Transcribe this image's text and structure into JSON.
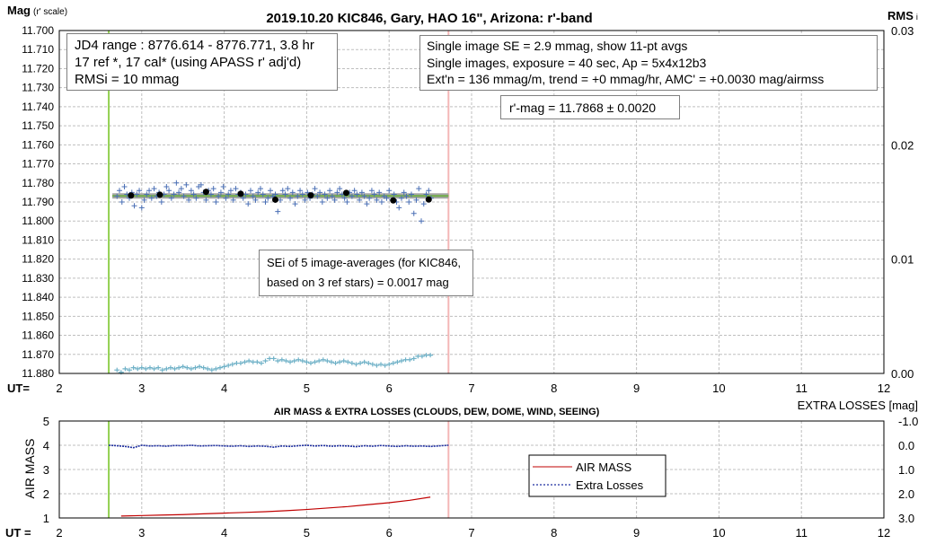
{
  "chart_data": [
    {
      "type": "scatter",
      "title": "2019.10.20 KIC846, Gary, HAO 16\", Arizona: r'-band",
      "ylabel_main": "Mag",
      "ylabel_sub": "(r' scale)",
      "y2label_main": "RMS",
      "y2label_sub": "i",
      "xlabel": "UT=",
      "xlim": [
        2,
        12
      ],
      "ylim": [
        11.7,
        11.88
      ],
      "y_inverted": true,
      "y2lim": [
        0.0,
        0.03
      ],
      "x_ticks": [
        "2",
        "3",
        "4",
        "5",
        "6",
        "7",
        "8",
        "9",
        "10",
        "11",
        "12"
      ],
      "y_ticks": [
        "11.700",
        "11.710",
        "11.720",
        "11.730",
        "11.740",
        "11.750",
        "11.760",
        "11.770",
        "11.780",
        "11.790",
        "11.800",
        "11.810",
        "11.820",
        "11.830",
        "11.840",
        "11.850",
        "11.860",
        "11.870",
        "11.880"
      ],
      "y2_ticks": [
        "0.03",
        "0.02",
        "0.01",
        "0.00"
      ],
      "grid": true,
      "vertical_lines": [
        {
          "x": 2.6,
          "color": "#92d050"
        },
        {
          "x": 6.72,
          "color": "#f4b6b6"
        }
      ],
      "fit_mag": 11.7868,
      "fit_x_range": [
        2.6,
        6.72
      ],
      "series": [
        {
          "kind": "single-image",
          "color": "#4a6fb5",
          "x": [
            2.7,
            2.73,
            2.76,
            2.79,
            2.82,
            2.85,
            2.88,
            2.91,
            2.94,
            2.97,
            3.0,
            3.03,
            3.06,
            3.09,
            3.12,
            3.15,
            3.18,
            3.21,
            3.24,
            3.27,
            3.3,
            3.33,
            3.36,
            3.39,
            3.42,
            3.45,
            3.48,
            3.51,
            3.54,
            3.57,
            3.6,
            3.63,
            3.66,
            3.69,
            3.72,
            3.75,
            3.78,
            3.81,
            3.84,
            3.87,
            3.9,
            3.93,
            3.96,
            3.99,
            4.02,
            4.05,
            4.08,
            4.11,
            4.14,
            4.17,
            4.2,
            4.23,
            4.26,
            4.29,
            4.32,
            4.35,
            4.38,
            4.41,
            4.44,
            4.47,
            4.5,
            4.53,
            4.56,
            4.59,
            4.62,
            4.65,
            4.68,
            4.71,
            4.74,
            4.77,
            4.8,
            4.83,
            4.86,
            4.89,
            4.92,
            4.95,
            4.98,
            5.01,
            5.04,
            5.07,
            5.1,
            5.13,
            5.16,
            5.19,
            5.22,
            5.25,
            5.28,
            5.31,
            5.34,
            5.37,
            5.4,
            5.43,
            5.46,
            5.49,
            5.52,
            5.55,
            5.58,
            5.61,
            5.64,
            5.67,
            5.7,
            5.73,
            5.76,
            5.79,
            5.82,
            5.85,
            5.88,
            5.91,
            5.94,
            5.97,
            6.0,
            6.03,
            6.06,
            6.09,
            6.12,
            6.15,
            6.18,
            6.21,
            6.24,
            6.27,
            6.3,
            6.33,
            6.36,
            6.39,
            6.42,
            6.45,
            6.48,
            6.51
          ],
          "y": [
            11.787,
            11.784,
            11.79,
            11.782,
            11.786,
            11.788,
            11.785,
            11.792,
            11.786,
            11.784,
            11.793,
            11.789,
            11.786,
            11.784,
            11.788,
            11.783,
            11.787,
            11.785,
            11.79,
            11.786,
            11.782,
            11.784,
            11.788,
            11.786,
            11.78,
            11.785,
            11.783,
            11.787,
            11.781,
            11.789,
            11.784,
            11.786,
            11.788,
            11.782,
            11.781,
            11.785,
            11.789,
            11.784,
            11.786,
            11.783,
            11.79,
            11.787,
            11.785,
            11.782,
            11.788,
            11.786,
            11.784,
            11.789,
            11.783,
            11.786,
            11.785,
            11.788,
            11.786,
            11.791,
            11.784,
            11.787,
            11.789,
            11.785,
            11.783,
            11.786,
            11.79,
            11.788,
            11.784,
            11.787,
            11.786,
            11.795,
            11.789,
            11.784,
            11.786,
            11.783,
            11.788,
            11.785,
            11.791,
            11.787,
            11.784,
            11.786,
            11.789,
            11.785,
            11.788,
            11.786,
            11.783,
            11.787,
            11.785,
            11.79,
            11.786,
            11.788,
            11.784,
            11.787,
            11.789,
            11.785,
            11.783,
            11.786,
            11.788,
            11.79,
            11.785,
            11.787,
            11.784,
            11.786,
            11.789,
            11.785,
            11.787,
            11.791,
            11.788,
            11.784,
            11.786,
            11.789,
            11.785,
            11.79,
            11.787,
            11.788,
            11.784,
            11.789,
            11.786,
            11.79,
            11.793,
            11.788,
            11.785,
            11.787,
            11.79,
            11.786,
            11.796,
            11.789,
            11.783,
            11.8,
            11.791,
            11.786,
            11.784,
            11.788
          ]
        },
        {
          "kind": "11-pt-avg",
          "color": "#000000",
          "x": [
            2.87,
            3.22,
            3.78,
            4.2,
            4.62,
            5.05,
            5.48,
            6.05,
            6.48
          ],
          "y": [
            11.7866,
            11.7862,
            11.7847,
            11.7857,
            11.7888,
            11.7865,
            11.7852,
            11.7892,
            11.7887
          ]
        },
        {
          "kind": "RMSi",
          "color": "#6fb1c7",
          "x": [
            2.7,
            2.75,
            2.8,
            2.85,
            2.9,
            2.95,
            3.0,
            3.05,
            3.1,
            3.15,
            3.2,
            3.25,
            3.3,
            3.35,
            3.4,
            3.45,
            3.5,
            3.55,
            3.6,
            3.65,
            3.7,
            3.75,
            3.8,
            3.85,
            3.9,
            3.95,
            4.0,
            4.05,
            4.1,
            4.15,
            4.2,
            4.25,
            4.3,
            4.35,
            4.4,
            4.45,
            4.5,
            4.55,
            4.6,
            4.65,
            4.7,
            4.75,
            4.8,
            4.85,
            4.9,
            4.95,
            5.0,
            5.05,
            5.1,
            5.15,
            5.2,
            5.25,
            5.3,
            5.35,
            5.4,
            5.45,
            5.5,
            5.55,
            5.6,
            5.65,
            5.7,
            5.75,
            5.8,
            5.85,
            5.9,
            5.95,
            6.0,
            6.05,
            6.1,
            6.15,
            6.2,
            6.25,
            6.3,
            6.35,
            6.4,
            6.45,
            6.5
          ],
          "y": [
            0.0003,
            0.0001,
            0.0004,
            0.0003,
            0.0005,
            0.0004,
            0.0005,
            0.0004,
            0.0005,
            0.0004,
            0.0005,
            0.0003,
            0.0004,
            0.0005,
            0.0004,
            0.0005,
            0.0006,
            0.0005,
            0.0004,
            0.0005,
            0.0006,
            0.0005,
            0.0004,
            0.0003,
            0.0004,
            0.0005,
            0.0006,
            0.0007,
            0.0008,
            0.0009,
            0.0009,
            0.001,
            0.0011,
            0.001,
            0.001,
            0.0009,
            0.0011,
            0.0013,
            0.0013,
            0.0011,
            0.0012,
            0.0011,
            0.001,
            0.0011,
            0.0012,
            0.0011,
            0.001,
            0.0009,
            0.001,
            0.0011,
            0.0012,
            0.0011,
            0.001,
            0.0009,
            0.001,
            0.0011,
            0.001,
            0.0009,
            0.0008,
            0.0009,
            0.001,
            0.0009,
            0.0008,
            0.0007,
            0.0008,
            0.0007,
            0.0008,
            0.0009,
            0.001,
            0.0011,
            0.0012,
            0.0012,
            0.0013,
            0.0015,
            0.0015,
            0.0016,
            0.0016
          ]
        }
      ]
    },
    {
      "type": "line",
      "title": "AIR MASS & EXTRA LOSSES (CLOUDS, DEW, DOME, WIND, SEEING)",
      "ylabel": "AIR MASS",
      "y2label": "EXTRA LOSSES [mag]",
      "xlabel": "UT =",
      "xlim": [
        2,
        12
      ],
      "ylim": [
        1,
        5
      ],
      "y2lim": [
        -1.0,
        3.0
      ],
      "y2_inverted": true,
      "x_ticks": [
        "2",
        "3",
        "4",
        "5",
        "6",
        "7",
        "8",
        "9",
        "10",
        "11",
        "12"
      ],
      "y_ticks": [
        "5",
        "4",
        "3",
        "2",
        "1"
      ],
      "y2_ticks": [
        "-1.0",
        "0.0",
        "1.0",
        "2.0",
        "3.0"
      ],
      "grid": true,
      "legend_position": "right",
      "series": [
        {
          "name": "AIR MASS",
          "color": "#c00000",
          "x": [
            2.75,
            3.0,
            3.25,
            3.5,
            3.75,
            4.0,
            4.25,
            4.5,
            4.75,
            5.0,
            5.25,
            5.5,
            5.75,
            6.0,
            6.25,
            6.5
          ],
          "y": [
            1.08,
            1.1,
            1.12,
            1.14,
            1.17,
            1.2,
            1.23,
            1.26,
            1.3,
            1.35,
            1.41,
            1.47,
            1.55,
            1.63,
            1.73,
            1.86
          ]
        },
        {
          "name": "Extra Losses",
          "color": "#1f2fa0",
          "x": [
            2.6,
            2.7,
            2.8,
            2.9,
            3.0,
            3.1,
            3.2,
            3.3,
            3.4,
            3.5,
            3.6,
            3.7,
            3.8,
            3.9,
            4.0,
            4.1,
            4.2,
            4.3,
            4.4,
            4.5,
            4.6,
            4.7,
            4.8,
            4.9,
            5.0,
            5.1,
            5.2,
            5.3,
            5.4,
            5.5,
            5.6,
            5.7,
            5.8,
            5.9,
            6.0,
            6.1,
            6.2,
            6.3,
            6.4,
            6.5,
            6.72
          ],
          "y": [
            0.0,
            0.02,
            0.05,
            0.1,
            0.0,
            0.03,
            0.02,
            0.04,
            0.01,
            0.02,
            0.0,
            0.03,
            0.02,
            0.01,
            0.03,
            0.04,
            0.02,
            0.05,
            0.03,
            0.04,
            0.08,
            0.03,
            0.05,
            0.02,
            0.0,
            0.03,
            0.01,
            0.04,
            0.02,
            0.03,
            0.06,
            0.02,
            0.04,
            0.01,
            0.03,
            0.05,
            0.02,
            0.04,
            0.03,
            0.05,
            0.0
          ]
        }
      ]
    }
  ],
  "boxes": {
    "info_left": {
      "line1": "JD4 range : 8776.614 - 8776.771,  3.8  hr",
      "line2": "17 ref *, 17 cal* (using APASS r' adj'd)",
      "line3": "RMSi = 10 mmag"
    },
    "info_right": {
      "line1": "Single image SE = 2.9 mmag, show  11-pt avgs",
      "line2": "Single images, exposure = 40 sec, Ap = 5x4x12b3",
      "line3": "Ext'n = 136 mmag/m, trend =  +0 mmag/hr, AMC' = +0.0030 mag/airmss"
    },
    "rmag": "r'-mag = 11.7868 ± 0.0020",
    "sei": {
      "line1": "SEi of 5 image-averages (for KIC846,",
      "line2": "based on 3 ref stars) = 0.0017 mag"
    }
  },
  "legend_lower": {
    "air_mass": "AIR MASS",
    "extra_losses": "Extra Losses"
  }
}
